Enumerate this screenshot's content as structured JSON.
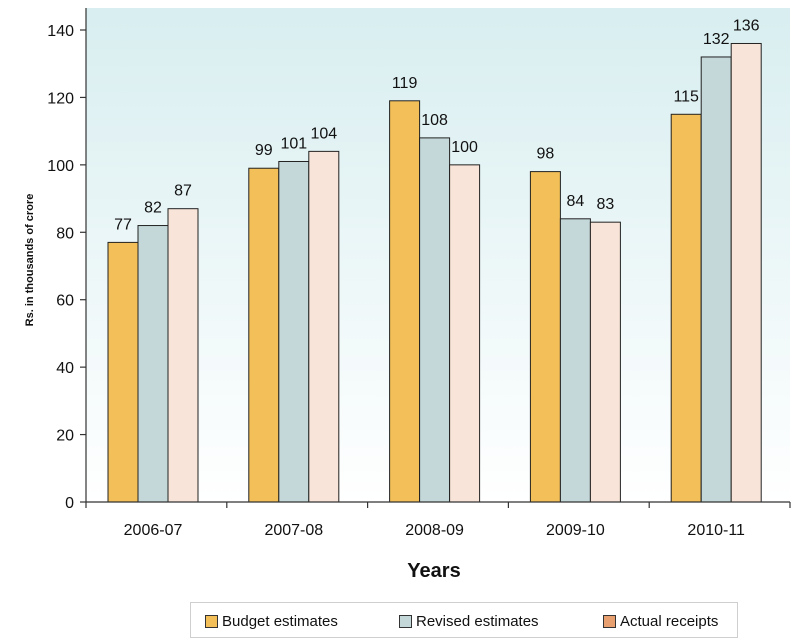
{
  "chart_data": {
    "type": "bar",
    "title": "",
    "xlabel": "Years",
    "ylabel": "Rs. in thousands of crore",
    "ylim": [
      0,
      140
    ],
    "yticks": [
      0,
      20,
      40,
      60,
      80,
      100,
      120,
      140
    ],
    "grid": false,
    "legend_position": "bottom",
    "categories": [
      "2006-07",
      "2007-08",
      "2008-09",
      "2009-10",
      "2010-11"
    ],
    "series": [
      {
        "name": "Budget estimates",
        "values": [
          77,
          99,
          119,
          98,
          115
        ],
        "color": "#f2bf58",
        "legend_swatch": "#f2bf58"
      },
      {
        "name": "Revised estimates",
        "values": [
          82,
          101,
          108,
          84,
          132
        ],
        "color": "#c4d8d9",
        "legend_swatch": "#c4d8d9"
      },
      {
        "name": "Actual receipts",
        "values": [
          87,
          104,
          100,
          83,
          136
        ],
        "color": "#f8e4d8",
        "legend_swatch": "#e8a070"
      }
    ],
    "plot_background_top": "#d8eef0",
    "plot_background_bottom": "#ffffff"
  }
}
